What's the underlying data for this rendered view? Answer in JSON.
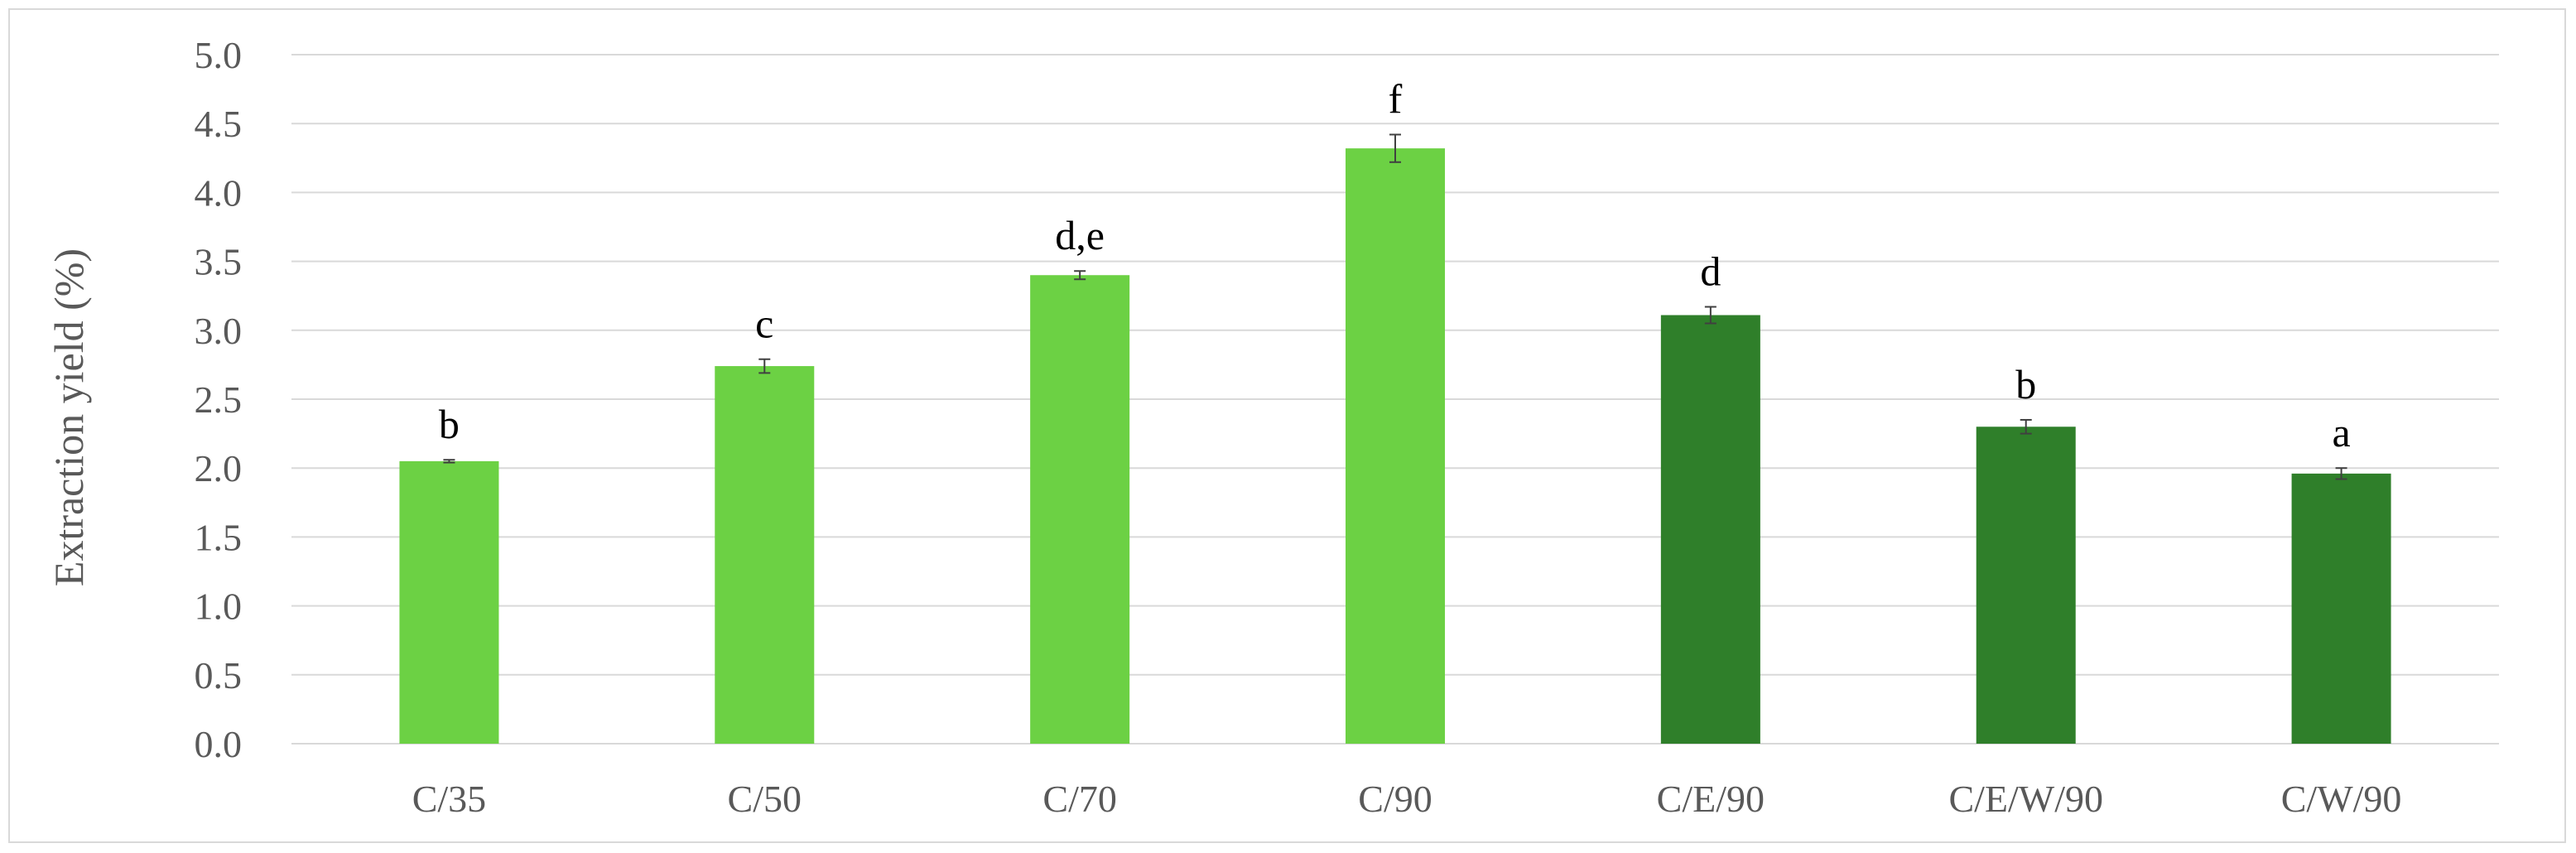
{
  "chart_data": {
    "type": "bar",
    "title": "",
    "xlabel": "",
    "ylabel": "Extraction yield (%)",
    "ylim": [
      0,
      5
    ],
    "yticks": [
      "0.0",
      "0.5",
      "1.0",
      "1.5",
      "2.0",
      "2.5",
      "3.0",
      "3.5",
      "4.0",
      "4.5",
      "5.0"
    ],
    "grid": true,
    "legend": "none",
    "categories": [
      "C/35",
      "C/50",
      "C/70",
      "C/90",
      "C/E/90",
      "C/E/W/90",
      "C/W/90"
    ],
    "values": [
      2.05,
      2.74,
      3.4,
      4.32,
      3.11,
      2.3,
      1.96
    ],
    "errors": [
      0.01,
      0.05,
      0.03,
      0.1,
      0.06,
      0.05,
      0.04
    ],
    "significance_letters": [
      "b",
      "c",
      "d,e",
      "f",
      "d",
      "b",
      "a"
    ],
    "bar_colors": [
      "#6cd144",
      "#6cd144",
      "#6cd144",
      "#6cd144",
      "#2f7f2a",
      "#2f7f2a",
      "#2f7f2a"
    ]
  }
}
